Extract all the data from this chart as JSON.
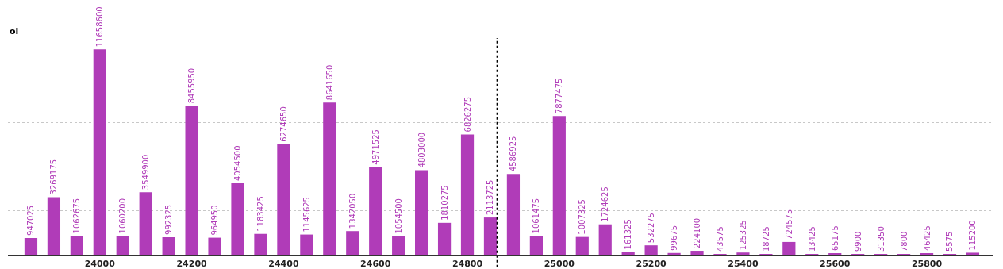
{
  "chart_data": {
    "type": "bar",
    "ylabel": "oi",
    "x": [
      23850,
      23900,
      23950,
      24000,
      24050,
      24100,
      24150,
      24200,
      24250,
      24300,
      24350,
      24400,
      24450,
      24500,
      24550,
      24600,
      24650,
      24700,
      24750,
      24800,
      24850,
      24900,
      24950,
      25000,
      25050,
      25100,
      25150,
      25200,
      25250,
      25300,
      25350,
      25400,
      25450,
      25500,
      25550,
      25600,
      25650,
      25700,
      25750,
      25800,
      25850,
      25900
    ],
    "values": [
      947025,
      3269175,
      1062675,
      11658600,
      1060200,
      3549900,
      992325,
      8455950,
      964950,
      4054500,
      1183425,
      6274650,
      1145625,
      8641650,
      1342050,
      4971525,
      1054500,
      4803000,
      1810275,
      6826275,
      2113725,
      4586925,
      1061475,
      7877475,
      1007325,
      1724625,
      161325,
      532275,
      99675,
      224100,
      43575,
      125325,
      18725,
      724575,
      13425,
      65175,
      9900,
      31350,
      7800,
      46425,
      5575,
      115200
    ],
    "color": "#b03cb8",
    "data_labels": true,
    "xlim": [
      23800,
      25945
    ],
    "xticks": [
      24000,
      24200,
      24400,
      24600,
      24800,
      25000,
      25200,
      25400,
      25600,
      25800
    ],
    "ylim": [
      0,
      12300000
    ],
    "yticks": [
      {
        "value": 2500000,
        "label": null
      },
      {
        "value": 5000000,
        "label": null
      },
      {
        "value": 7500000,
        "label": null
      },
      {
        "value": 10000000,
        "label": null
      }
    ],
    "tick_labels": "x",
    "grid": "y",
    "ref_lines": [
      {
        "axis": "x",
        "value": 24865,
        "label": null,
        "color": "#000000",
        "line_style": "dotted"
      }
    ]
  }
}
